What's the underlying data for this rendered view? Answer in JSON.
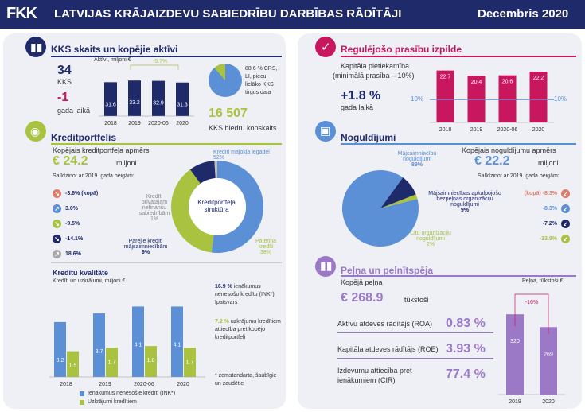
{
  "header": {
    "logo": "FKK",
    "title": "LATVIJAS KRĀJAIZDEVU SABIEDRĪBU DARBĪBAS RĀDĪTĀJI",
    "date": "Decembris 2020"
  },
  "kks": {
    "title": "KKS skaits un kopējie aktīvi",
    "count": "34",
    "count_label": "KKS",
    "change": "-1",
    "change_label": "gada laikā",
    "assets_label": "Aktīvi, miljoni €",
    "change_pct": "-5.7%",
    "pie_text": "88.6 % CRS, LI, piecu lielāko KKS tirgus daļa",
    "members": "16 507",
    "members_label": "KKS biedru kopskaits"
  },
  "credit": {
    "title": "Kreditportfelis",
    "total_label": "Kopējais kreditportfeļa apmērs",
    "total": "€ 24.2",
    "unit": "miljoni",
    "compare": "Salīdzinot ar 2019. gada beigām:",
    "changes": [
      "-3.6% (kopā)",
      "3.0%",
      "-9.5%",
      "-14.1%",
      "18.6%"
    ],
    "donut_center": "Kreditportfeļa struktūra",
    "seg_households": "Kredīti mājokļa iegādei",
    "seg_households_pct": "52%",
    "seg_private": "Kredīti privātajām nefinanšu sabiedrībām",
    "seg_private_pct": "1%",
    "seg_other": "Pārējie kredīti mājsaimniecībām",
    "seg_other_pct": "9%",
    "seg_consumer": "Patēriņa kredīti",
    "seg_consumer_pct": "38%"
  },
  "quality": {
    "title": "Kredītu kvalitāte",
    "subtitle": "Kredīti un uzkrājumi, miljoni €",
    "note1_pct": "16.9 %",
    "note1": "ienākumus nenesošo kredītu (INK*) īpatsvars",
    "note2_pct": "7.2 %",
    "note2": "uzkrājumu kredītiem attiecība pret kopējo kreditportfeli",
    "footnote": "* zemstandarta, šaubīgie un zaudētie",
    "legend1": "Ienākumus nenesošie kredīti (INK*)",
    "legend2": "Uzkrājumi kredītiem"
  },
  "reg": {
    "title": "Regulējošo prasību izpilde",
    "capital_label": "Kapitāla pietiekamība",
    "capital_sub": "(minimālā prasība – 10%)",
    "change": "+1.8 %",
    "change_label": "gada laikā",
    "line_label": "10%"
  },
  "deposits": {
    "title": "Noguldījumi",
    "total_label": "Kopējais noguldījumu apmērs",
    "total": "€ 22.2",
    "unit": "miljoni",
    "compare": "Salīdzinot ar 2019. gada beigām:",
    "seg_households": "Mājsaimniecību noguldījumi",
    "seg_households_pct": "89%",
    "seg_nonprofit": "Mājsaimniecības apkalpojošo bezpeļņas organizāciju noguldījumi",
    "seg_nonprofit_pct": "9%",
    "seg_other": "Citu organizāciju noguldījumi",
    "seg_other_pct": "2%",
    "changes": [
      "(kopā) -8.3%",
      "-8.3%",
      "-7.2%",
      "-13.8%"
    ]
  },
  "profit": {
    "title": "Peļņa un pelnītspēja",
    "total_label": "Kopējā peļņa",
    "total": "€ 268.9",
    "unit": "tūkstoši",
    "roa_label": "Aktīvu atdeves rādītājs (ROA)",
    "roa": "0.83 %",
    "roe_label": "Kapitāla atdeves rādītājs (ROE)",
    "roe": "3.93 %",
    "cir_label": "Izdevumu attiecība pret ienākumiem (CIR)",
    "cir": "77.4 %",
    "chart_label": "Peļņa, tūkstoši €",
    "change_pct": "-16%"
  },
  "colors": {
    "navy": "#1f2a6b",
    "pink": "#c9175f",
    "green": "#a9c23f",
    "blue": "#5b8fd6",
    "purple": "#9b79c7",
    "teal": "#2e8c8c"
  },
  "chart_data": [
    {
      "type": "bar",
      "title": "Aktīvi, miljoni €",
      "categories": [
        "2018",
        "2019",
        "2020-06",
        "2020"
      ],
      "values": [
        31.6,
        33.2,
        32.9,
        31.3
      ],
      "ylim": [
        0,
        40
      ]
    },
    {
      "type": "bar",
      "title": "Kapitāla pietiekamība",
      "categories": [
        "2018",
        "2019",
        "2020-06",
        "2020"
      ],
      "values": [
        22.7,
        20.4,
        20.6,
        22.2
      ],
      "ylim": [
        0,
        25
      ]
    },
    {
      "type": "bar",
      "title": "Kredīti un uzkrājumi, miljoni €",
      "categories": [
        "2018",
        "2019",
        "2020-06",
        "2020"
      ],
      "series": [
        {
          "name": "Ienākumus nenesošie kredīti (INK*)",
          "values": [
            3.2,
            3.7,
            4.1,
            4.1
          ]
        },
        {
          "name": "Uzkrājumi kredītiem",
          "values": [
            1.5,
            1.7,
            1.8,
            1.7
          ]
        }
      ],
      "ylim": [
        0,
        5
      ]
    },
    {
      "type": "bar",
      "title": "Peļņa, tūkstoši €",
      "categories": [
        "2019",
        "2020"
      ],
      "values": [
        320,
        269
      ],
      "ylim": [
        0,
        400
      ]
    }
  ]
}
